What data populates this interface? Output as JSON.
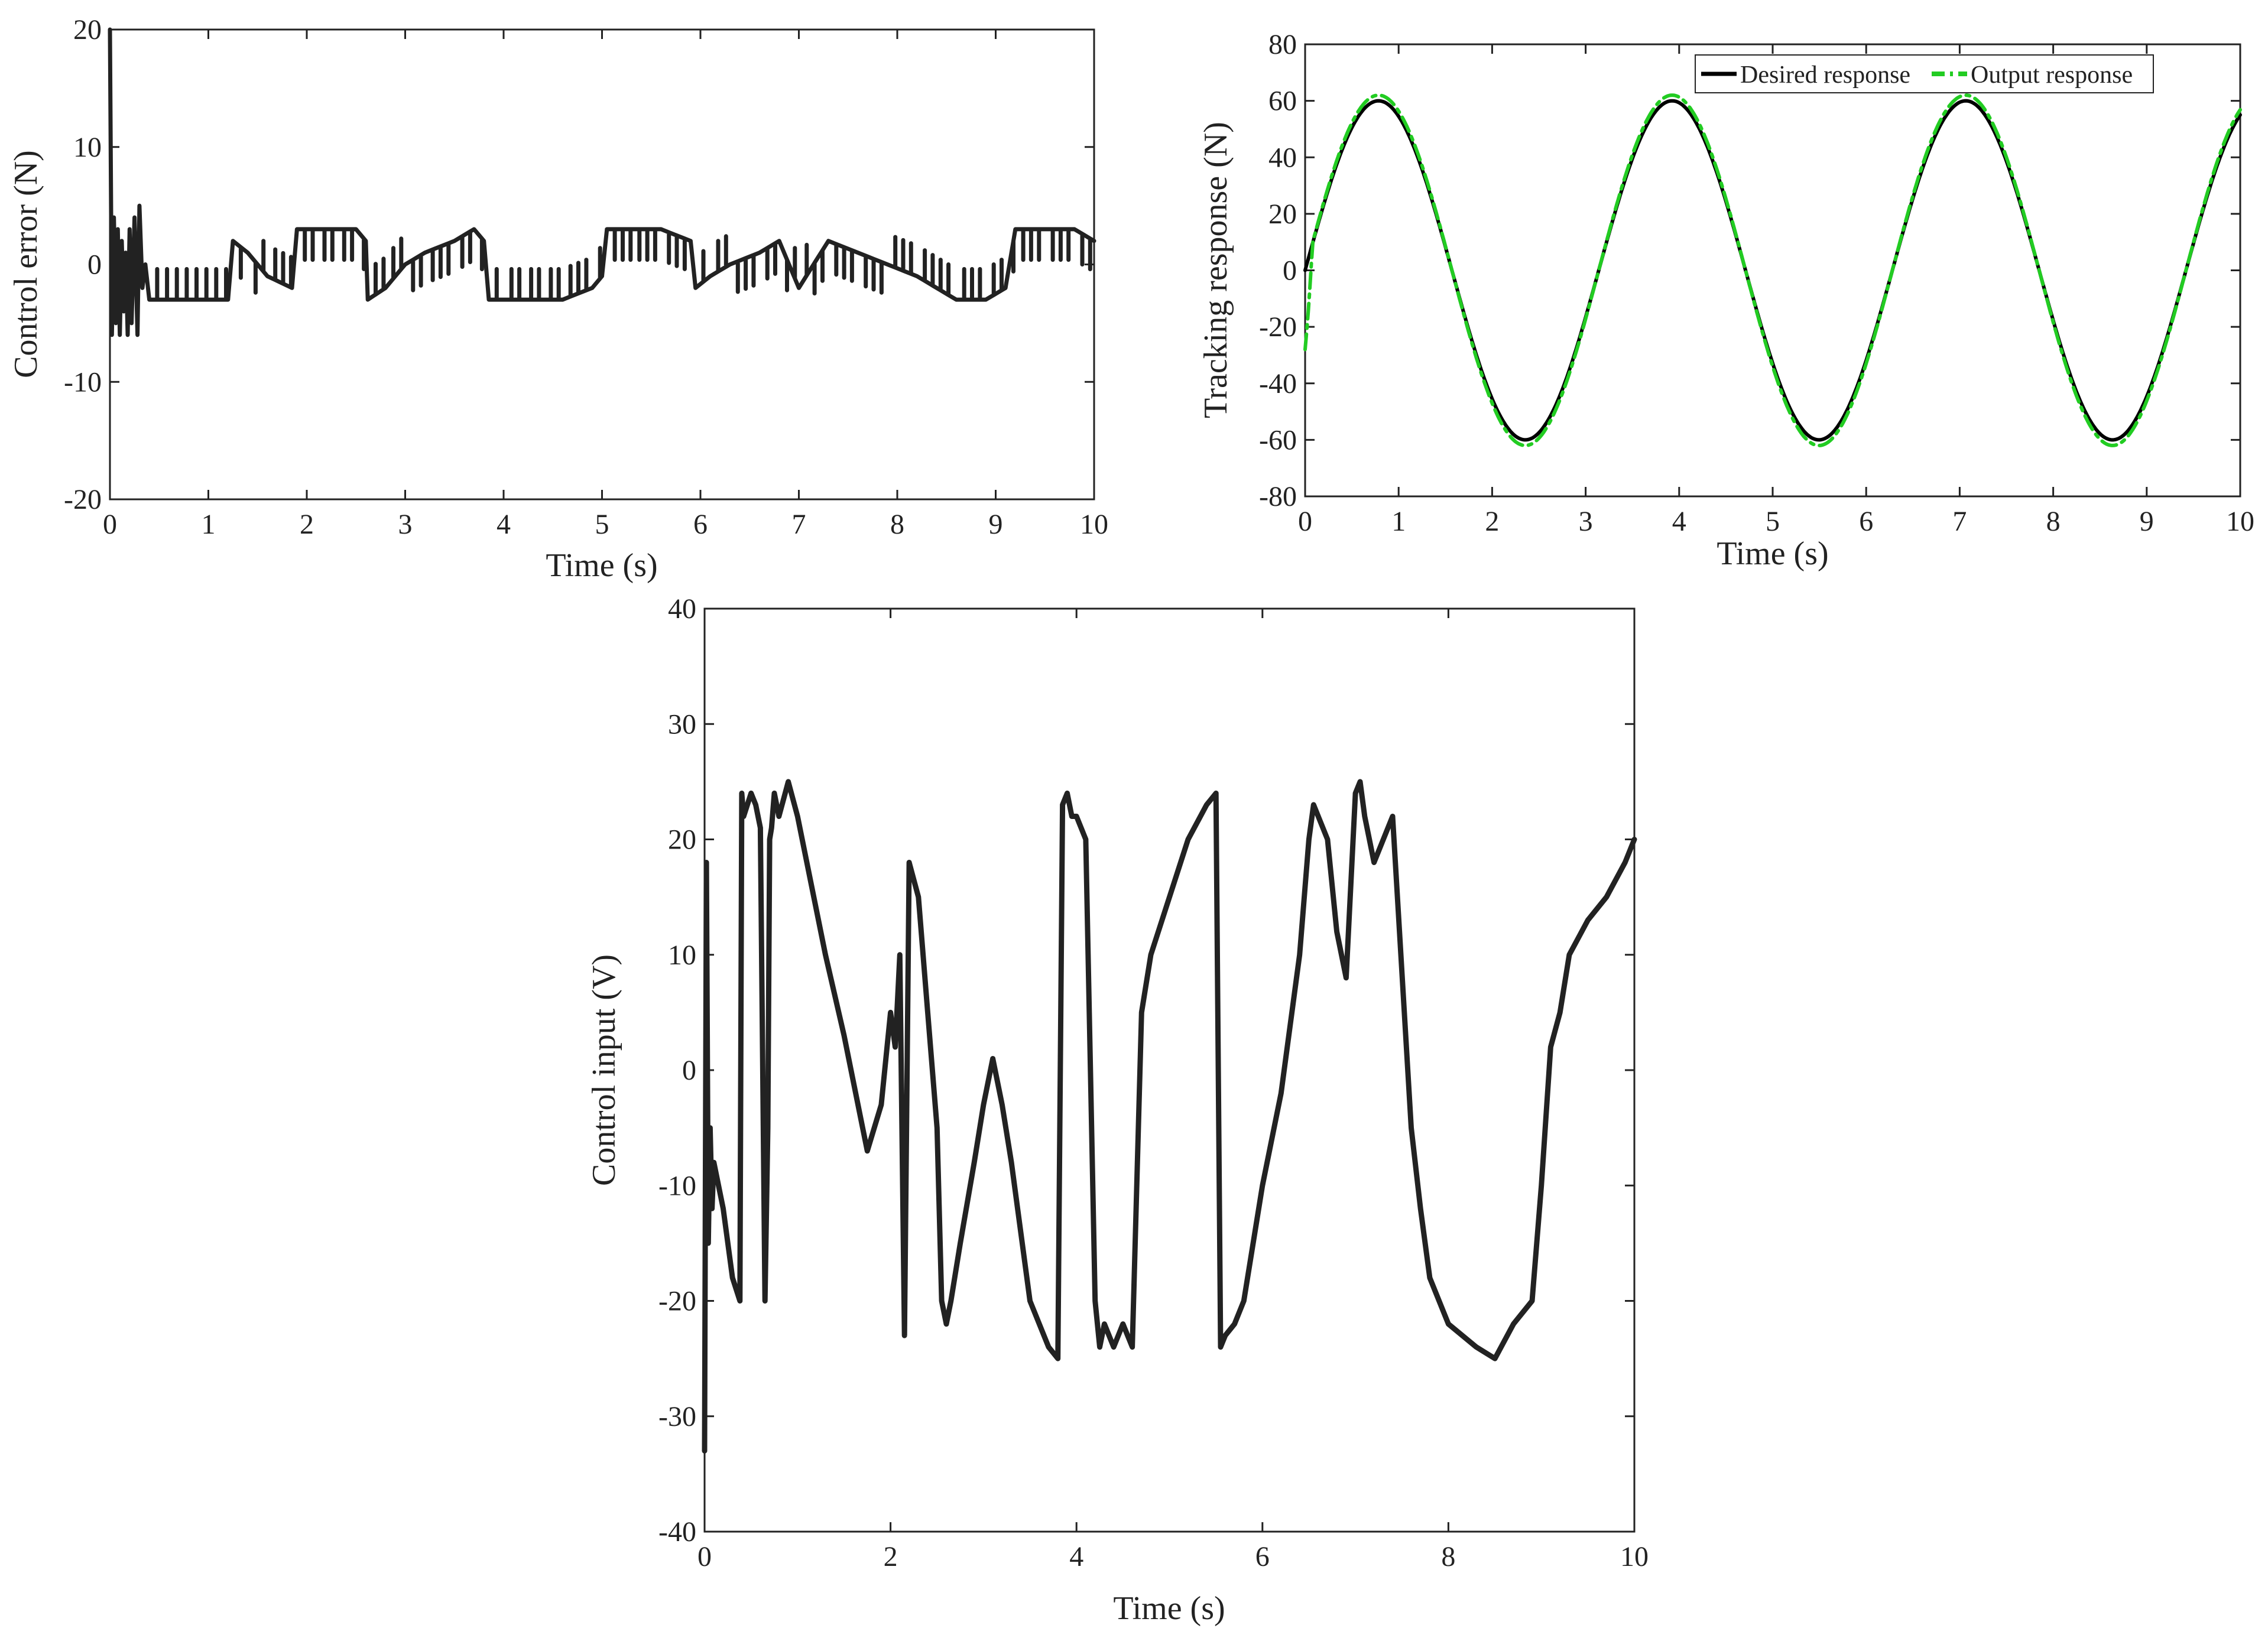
{
  "chart_data": [
    {
      "id": "error",
      "type": "line",
      "title": "",
      "xlabel": "Time (s)",
      "ylabel": "Control error (N)",
      "xlim": [
        0,
        10
      ],
      "ylim": [
        -20,
        20
      ],
      "xticks": [
        "0",
        "1",
        "2",
        "3",
        "4",
        "5",
        "6",
        "7",
        "8",
        "9",
        "10"
      ],
      "yticks": [
        "20",
        "10",
        "0",
        "-10",
        "-20"
      ],
      "grid": false,
      "series": [
        {
          "name": "Control error",
          "color": "#222222",
          "x": [
            0,
            0.02,
            0.04,
            0.06,
            0.08,
            0.1,
            0.12,
            0.14,
            0.16,
            0.18,
            0.2,
            0.22,
            0.25,
            0.28,
            0.3,
            0.33,
            0.36,
            0.4,
            0.5,
            0.6,
            0.7,
            0.8,
            0.9,
            1.0,
            1.1,
            1.2,
            1.25,
            1.4,
            1.6,
            1.85,
            1.9,
            2.1,
            2.3,
            2.5,
            2.6,
            2.62,
            2.8,
            3.0,
            3.2,
            3.5,
            3.7,
            3.8,
            3.85,
            4.0,
            4.2,
            4.4,
            4.6,
            4.9,
            5.0,
            5.05,
            5.3,
            5.6,
            5.9,
            5.95,
            6.1,
            6.3,
            6.6,
            6.8,
            7.0,
            7.3,
            7.6,
            7.9,
            8.2,
            8.6,
            8.9,
            9.1,
            9.2,
            9.5,
            9.8,
            10.0
          ],
          "y": [
            20,
            -6,
            4,
            -5,
            3,
            -6,
            2,
            -4,
            1,
            -6,
            3,
            -5,
            4,
            -6,
            5,
            -2,
            0,
            -3,
            -3,
            -3,
            -3,
            -3,
            -3,
            -3,
            -3,
            -3,
            2,
            1,
            -1,
            -2,
            3,
            3,
            3,
            3,
            2,
            -3,
            -2,
            0,
            1,
            2,
            3,
            2,
            -3,
            -3,
            -3,
            -3,
            -3,
            -2,
            -1,
            3,
            3,
            3,
            2,
            -2,
            -1,
            0,
            1,
            2,
            -2,
            2,
            1,
            0,
            -1,
            -3,
            -3,
            -2,
            3,
            3,
            3,
            2
          ],
          "ripple_from": 0.4,
          "ripple_amplitude": 2.6,
          "ripple_period": 0.08
        }
      ]
    },
    {
      "id": "tracking",
      "type": "line",
      "title": "",
      "xlabel": "Time (s)",
      "ylabel": "Tracking response (N)",
      "xlim": [
        0,
        10
      ],
      "ylim": [
        -80,
        80
      ],
      "xticks": [
        "0",
        "1",
        "2",
        "3",
        "4",
        "5",
        "6",
        "7",
        "8",
        "9",
        "10"
      ],
      "yticks": [
        "80",
        "60",
        "40",
        "20",
        "0",
        "-20",
        "-40",
        "-60",
        "-80"
      ],
      "grid": false,
      "legend": {
        "position": "top-right",
        "entries": [
          "Desired response",
          "Output response"
        ]
      },
      "series": [
        {
          "name": "Desired response",
          "color": "#000000",
          "style": "solid",
          "function": "sine",
          "amplitude": 60,
          "period": 3.14,
          "phase": 0,
          "x_start": 0,
          "x_end": 10
        },
        {
          "name": "Output response",
          "color": "#22cc22",
          "style": "dash-dot",
          "function": "sine",
          "amplitude": 62,
          "period": 3.14,
          "phase": 0,
          "initial_dip": -28,
          "x_start": 0,
          "x_end": 10
        }
      ]
    },
    {
      "id": "input",
      "type": "line",
      "title": "",
      "xlabel": "Time (s)",
      "ylabel": "Control input (V)",
      "xlim": [
        0,
        10
      ],
      "ylim": [
        -40,
        40
      ],
      "xticks": [
        "0",
        "2",
        "4",
        "6",
        "8",
        "10"
      ],
      "yticks": [
        "40",
        "30",
        "20",
        "10",
        "0",
        "-10",
        "-20",
        "-30",
        "-40"
      ],
      "grid": false,
      "series": [
        {
          "name": "Control input",
          "color": "#222222",
          "x": [
            0,
            0.02,
            0.04,
            0.06,
            0.08,
            0.1,
            0.15,
            0.2,
            0.3,
            0.38,
            0.4,
            0.42,
            0.5,
            0.55,
            0.6,
            0.65,
            0.68,
            0.7,
            0.72,
            0.75,
            0.8,
            0.9,
            1.0,
            1.1,
            1.3,
            1.5,
            1.7,
            1.75,
            1.9,
            2.0,
            2.05,
            2.1,
            2.15,
            2.2,
            2.3,
            2.4,
            2.5,
            2.55,
            2.6,
            2.65,
            2.75,
            2.9,
            3.0,
            3.1,
            3.2,
            3.3,
            3.5,
            3.7,
            3.8,
            3.85,
            3.9,
            3.95,
            4.0,
            4.1,
            4.2,
            4.25,
            4.3,
            4.4,
            4.5,
            4.6,
            4.7,
            4.8,
            5.0,
            5.2,
            5.4,
            5.5,
            5.55,
            5.6,
            5.7,
            5.8,
            6.0,
            6.2,
            6.4,
            6.5,
            6.55,
            6.6,
            6.7,
            6.8,
            6.9,
            7.0,
            7.05,
            7.1,
            7.2,
            7.3,
            7.4,
            7.6,
            7.7,
            7.8,
            8.0,
            8.3,
            8.5,
            8.7,
            8.9,
            9.0,
            9.1,
            9.2,
            9.3,
            9.5,
            9.7,
            9.9,
            10.0
          ],
          "y": [
            -33,
            18,
            -15,
            -5,
            -12,
            -8,
            -10,
            -12,
            -18,
            -20,
            24,
            22,
            24,
            23,
            21,
            -20,
            -5,
            20,
            21,
            24,
            22,
            25,
            22,
            18,
            10,
            3,
            -5,
            -7,
            -3,
            5,
            2,
            10,
            -23,
            18,
            15,
            5,
            -5,
            -20,
            -22,
            -20,
            -15,
            -8,
            -3,
            1,
            -3,
            -8,
            -20,
            -24,
            -25,
            23,
            24,
            22,
            22,
            20,
            -20,
            -24,
            -22,
            -24,
            -22,
            -24,
            5,
            10,
            15,
            20,
            23,
            24,
            -24,
            -23,
            -22,
            -20,
            -10,
            -2,
            10,
            20,
            23,
            22,
            20,
            12,
            8,
            24,
            25,
            22,
            18,
            20,
            22,
            -5,
            -12,
            -18,
            -22,
            -24,
            -25,
            -22,
            -20,
            -10,
            2,
            5,
            10,
            13,
            15,
            18,
            20
          ]
        }
      ]
    }
  ]
}
